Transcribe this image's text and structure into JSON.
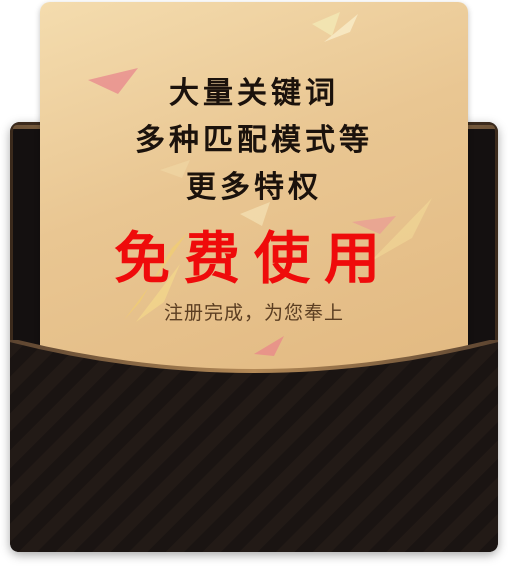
{
  "card": {
    "line1": "大量关键词",
    "line2": "多种匹配模式等",
    "line3": "更多特权",
    "cta": "免费使用",
    "subtitle": "注册完成，为您奉上"
  },
  "colors": {
    "card_gold": "#e9c692",
    "envelope_dark": "#141010",
    "envelope_rim": "#8a6a45",
    "cta_red": "#ef0b0b",
    "text_dark": "#1b120c"
  }
}
